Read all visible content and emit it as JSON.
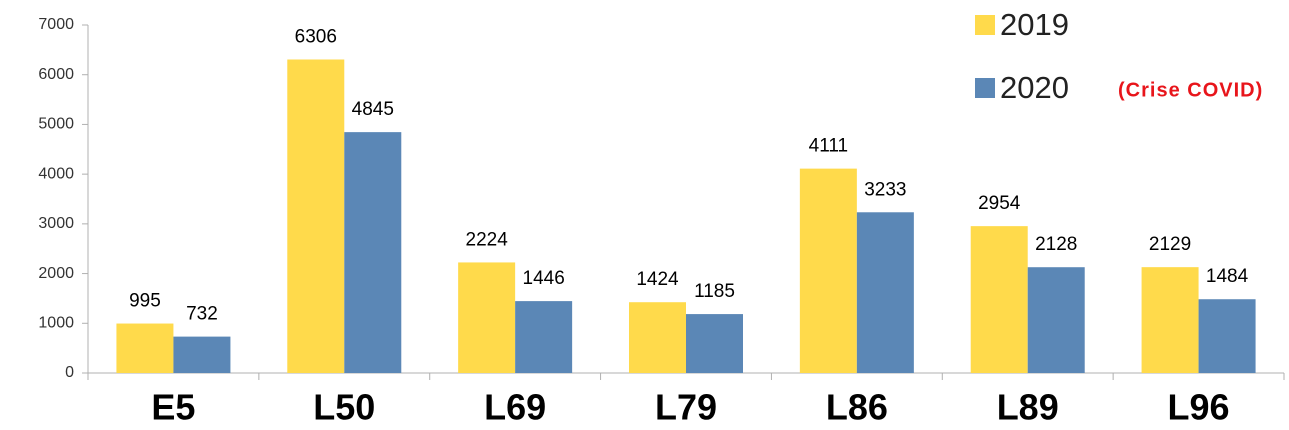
{
  "chart_data": {
    "type": "bar",
    "categories": [
      "E5",
      "L50",
      "L69",
      "L79",
      "L86",
      "L89",
      "L96"
    ],
    "series": [
      {
        "name": "2019",
        "color": "#ffda4b",
        "values": [
          995,
          6306,
          2224,
          1424,
          4111,
          2954,
          2129
        ]
      },
      {
        "name": "2020",
        "color": "#5b87b6",
        "values": [
          732,
          4845,
          1446,
          1185,
          3233,
          2128,
          1484
        ]
      }
    ],
    "annotation": "(Crise COVID)",
    "ylim": [
      0,
      7000
    ],
    "yticks": [
      0,
      1000,
      2000,
      3000,
      4000,
      5000,
      6000,
      7000
    ],
    "legend": "top-right"
  }
}
